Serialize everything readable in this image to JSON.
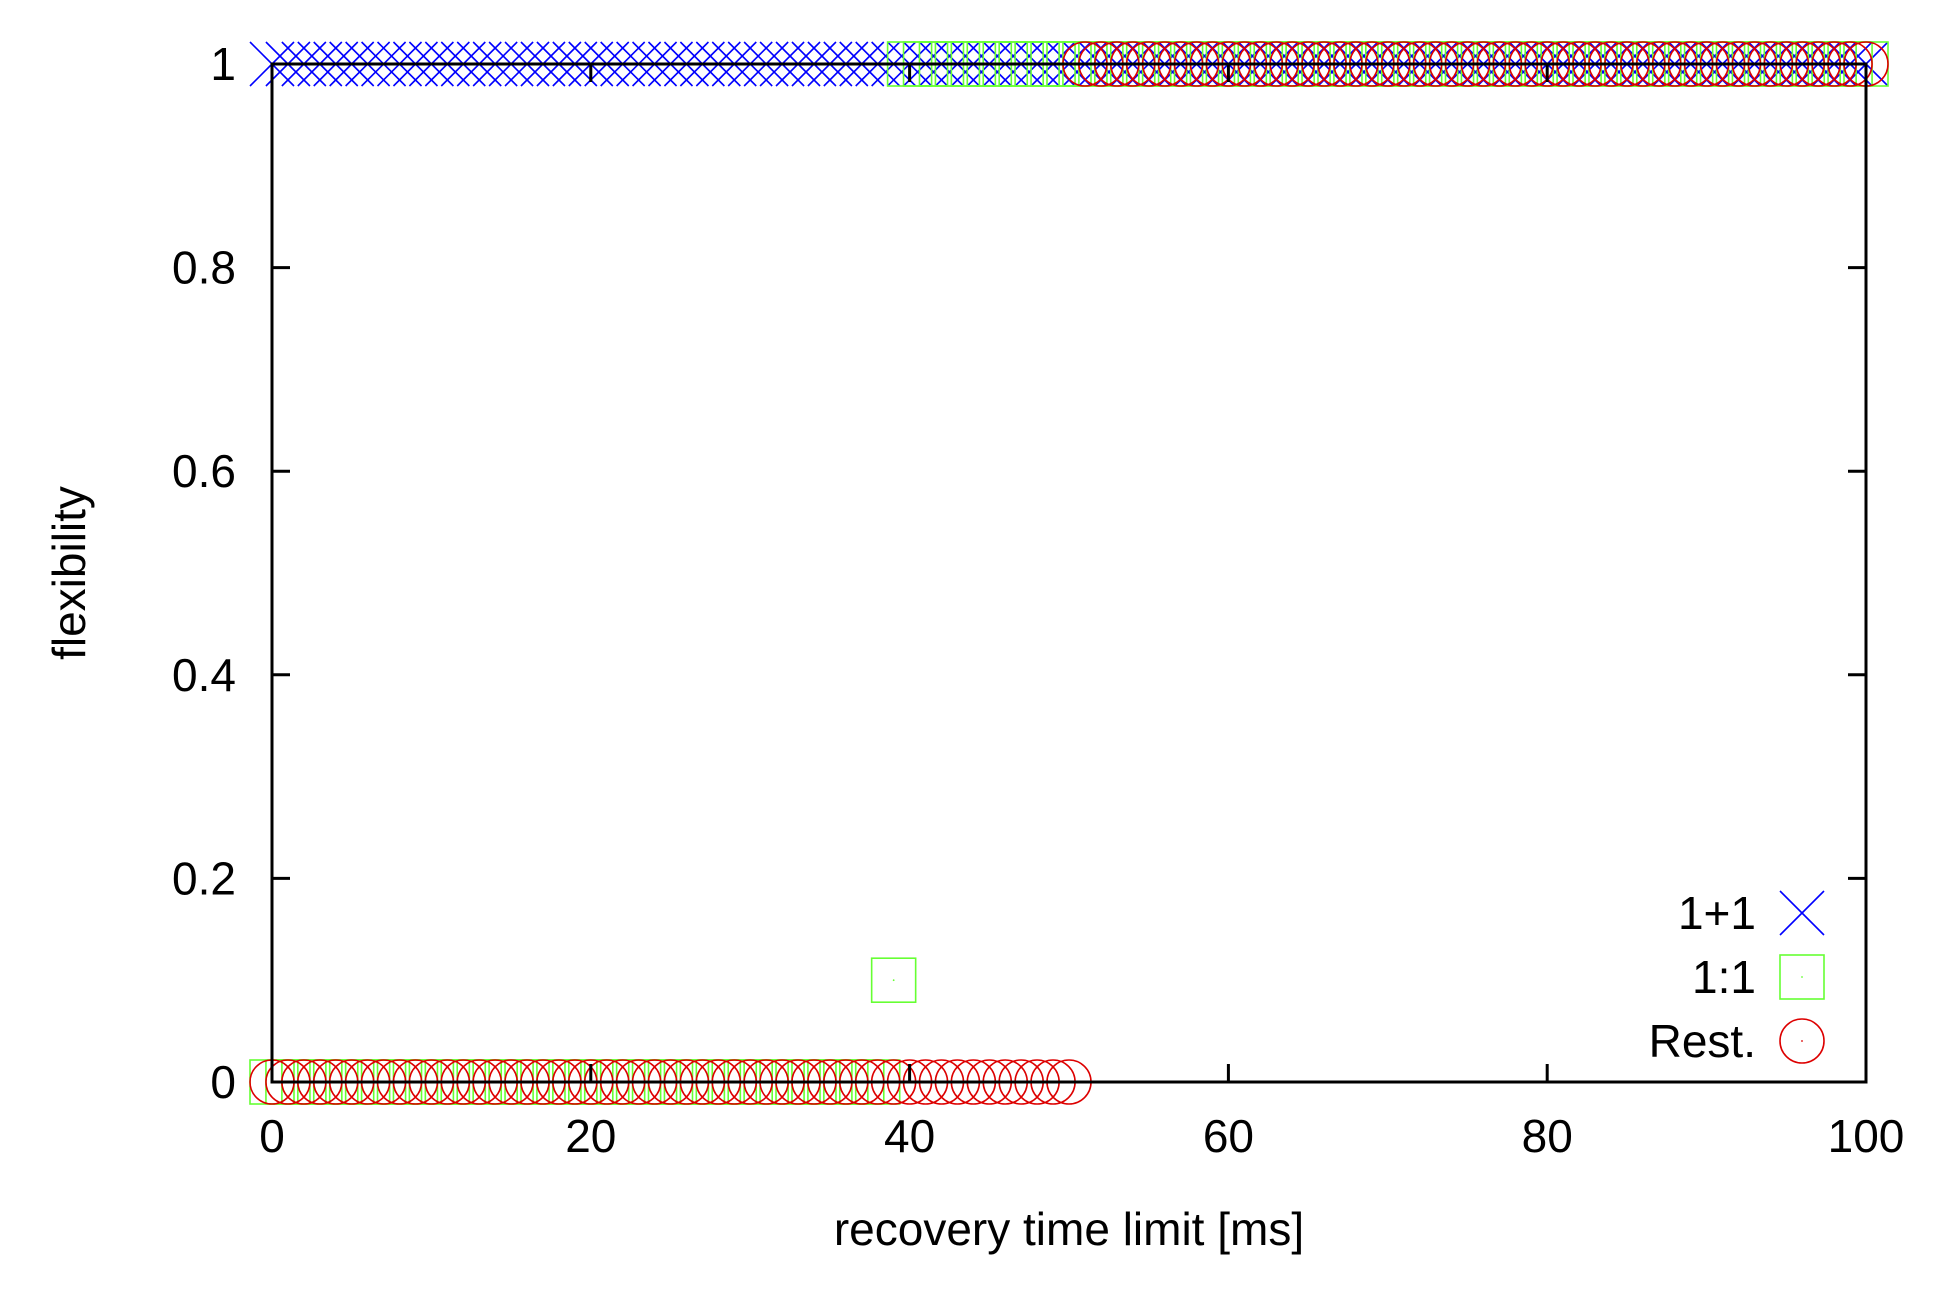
{
  "chart_data": {
    "type": "scatter",
    "title": "",
    "xlabel": "recovery time limit [ms]",
    "ylabel": "flexibility",
    "xlim": [
      0,
      100
    ],
    "ylim": [
      0,
      1
    ],
    "xticks": [
      0,
      20,
      40,
      60,
      80,
      100
    ],
    "yticks": [
      0,
      0.2,
      0.4,
      0.6,
      0.8,
      1
    ],
    "xtick_labels": [
      "0",
      "20",
      "40",
      "60",
      "80",
      "100"
    ],
    "ytick_labels": [
      "0",
      "0.2",
      "0.4",
      "0.6",
      "0.8",
      "1"
    ],
    "grid": false,
    "legend_position": "bottom-right",
    "series": [
      {
        "name": "1+1",
        "marker": "cross",
        "color": "#0000ff",
        "x": [
          0,
          1,
          2,
          3,
          4,
          5,
          6,
          7,
          8,
          9,
          10,
          11,
          12,
          13,
          14,
          15,
          16,
          17,
          18,
          19,
          20,
          21,
          22,
          23,
          24,
          25,
          26,
          27,
          28,
          29,
          30,
          31,
          32,
          33,
          34,
          35,
          36,
          37,
          38,
          39,
          40,
          41,
          42,
          43,
          44,
          45,
          46,
          47,
          48,
          49,
          50,
          51,
          52,
          53,
          54,
          55,
          56,
          57,
          58,
          59,
          60,
          61,
          62,
          63,
          64,
          65,
          66,
          67,
          68,
          69,
          70,
          71,
          72,
          73,
          74,
          75,
          76,
          77,
          78,
          79,
          80,
          81,
          82,
          83,
          84,
          85,
          86,
          87,
          88,
          89,
          90,
          91,
          92,
          93,
          94,
          95,
          96,
          97,
          98,
          99,
          100
        ],
        "y": [
          1,
          1,
          1,
          1,
          1,
          1,
          1,
          1,
          1,
          1,
          1,
          1,
          1,
          1,
          1,
          1,
          1,
          1,
          1,
          1,
          1,
          1,
          1,
          1,
          1,
          1,
          1,
          1,
          1,
          1,
          1,
          1,
          1,
          1,
          1,
          1,
          1,
          1,
          1,
          1,
          1,
          1,
          1,
          1,
          1,
          1,
          1,
          1,
          1,
          1,
          1,
          1,
          1,
          1,
          1,
          1,
          1,
          1,
          1,
          1,
          1,
          1,
          1,
          1,
          1,
          1,
          1,
          1,
          1,
          1,
          1,
          1,
          1,
          1,
          1,
          1,
          1,
          1,
          1,
          1,
          1,
          1,
          1,
          1,
          1,
          1,
          1,
          1,
          1,
          1,
          1,
          1,
          1,
          1,
          1,
          1,
          1,
          1,
          1,
          1,
          1
        ]
      },
      {
        "name": "1:1",
        "marker": "square",
        "color": "#66ff33",
        "x": [
          0,
          1,
          2,
          3,
          4,
          5,
          6,
          7,
          8,
          9,
          10,
          11,
          12,
          13,
          14,
          15,
          16,
          17,
          18,
          19,
          20,
          21,
          22,
          23,
          24,
          25,
          26,
          27,
          28,
          29,
          30,
          31,
          32,
          33,
          34,
          35,
          36,
          37,
          38,
          39,
          40,
          41,
          42,
          43,
          44,
          45,
          46,
          47,
          48,
          49,
          50,
          51,
          52,
          53,
          54,
          55,
          56,
          57,
          58,
          59,
          60,
          61,
          62,
          63,
          64,
          65,
          66,
          67,
          68,
          69,
          70,
          71,
          72,
          73,
          74,
          75,
          76,
          77,
          78,
          79,
          80,
          81,
          82,
          83,
          84,
          85,
          86,
          87,
          88,
          89,
          90,
          91,
          92,
          93,
          94,
          95,
          96,
          97,
          98,
          99,
          100
        ],
        "y": [
          0,
          0,
          0,
          0,
          0,
          0,
          0,
          0,
          0,
          0,
          0,
          0,
          0,
          0,
          0,
          0,
          0,
          0,
          0,
          0,
          0,
          0,
          0,
          0,
          0,
          0,
          0,
          0,
          0,
          0,
          0,
          0,
          0,
          0,
          0,
          0,
          0,
          0,
          0,
          0.1,
          1,
          1,
          1,
          1,
          1,
          1,
          1,
          1,
          1,
          1,
          1,
          1,
          1,
          1,
          1,
          1,
          1,
          1,
          1,
          1,
          1,
          1,
          1,
          1,
          1,
          1,
          1,
          1,
          1,
          1,
          1,
          1,
          1,
          1,
          1,
          1,
          1,
          1,
          1,
          1,
          1,
          1,
          1,
          1,
          1,
          1,
          1,
          1,
          1,
          1,
          1,
          1,
          1,
          1,
          1,
          1,
          1,
          1,
          1,
          1,
          1
        ]
      },
      {
        "name": "Rest.",
        "marker": "circle",
        "color": "#dd0000",
        "x": [
          0,
          1,
          2,
          3,
          4,
          5,
          6,
          7,
          8,
          9,
          10,
          11,
          12,
          13,
          14,
          15,
          16,
          17,
          18,
          19,
          20,
          21,
          22,
          23,
          24,
          25,
          26,
          27,
          28,
          29,
          30,
          31,
          32,
          33,
          34,
          35,
          36,
          37,
          38,
          39,
          40,
          41,
          42,
          43,
          44,
          45,
          46,
          47,
          48,
          49,
          50,
          51,
          52,
          53,
          54,
          55,
          56,
          57,
          58,
          59,
          60,
          61,
          62,
          63,
          64,
          65,
          66,
          67,
          68,
          69,
          70,
          71,
          72,
          73,
          74,
          75,
          76,
          77,
          78,
          79,
          80,
          81,
          82,
          83,
          84,
          85,
          86,
          87,
          88,
          89,
          90,
          91,
          92,
          93,
          94,
          95,
          96,
          97,
          98,
          99,
          100
        ],
        "y": [
          0,
          0,
          0,
          0,
          0,
          0,
          0,
          0,
          0,
          0,
          0,
          0,
          0,
          0,
          0,
          0,
          0,
          0,
          0,
          0,
          0,
          0,
          0,
          0,
          0,
          0,
          0,
          0,
          0,
          0,
          0,
          0,
          0,
          0,
          0,
          0,
          0,
          0,
          0,
          0,
          0,
          0,
          0,
          0,
          0,
          0,
          0,
          0,
          0,
          0,
          0,
          1,
          1,
          1,
          1,
          1,
          1,
          1,
          1,
          1,
          1,
          1,
          1,
          1,
          1,
          1,
          1,
          1,
          1,
          1,
          1,
          1,
          1,
          1,
          1,
          1,
          1,
          1,
          1,
          1,
          1,
          1,
          1,
          1,
          1,
          1,
          1,
          1,
          1,
          1,
          1,
          1,
          1,
          1,
          1,
          1,
          1,
          1,
          1,
          1,
          1
        ]
      }
    ]
  }
}
